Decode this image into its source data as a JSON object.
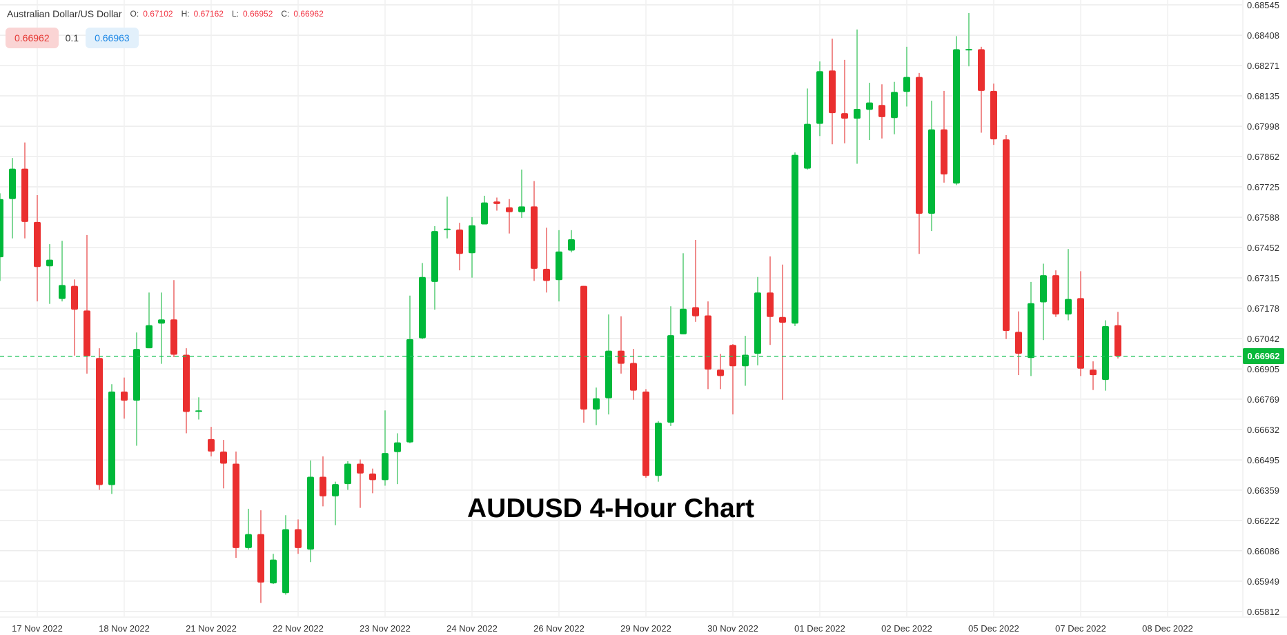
{
  "header": {
    "symbol_name": "Australian Dollar/US Dollar",
    "ohlc": [
      {
        "key": "O:",
        "value": "0.67102"
      },
      {
        "key": "H:",
        "value": "0.67162"
      },
      {
        "key": "L:",
        "value": "0.66952"
      },
      {
        "key": "C:",
        "value": "0.66962"
      }
    ],
    "bid": "0.66962",
    "spread": "0.1",
    "ask": "0.66963"
  },
  "chart_data": {
    "type": "candlestick",
    "title": "AUDUSD 4-Hour Chart",
    "ylim": [
      0.65812,
      0.68545
    ],
    "y_ticks": [
      "0.68545",
      "0.68408",
      "0.68271",
      "0.68135",
      "0.67998",
      "0.67862",
      "0.67725",
      "0.67588",
      "0.67452",
      "0.67315",
      "0.67178",
      "0.67042",
      "0.66905",
      "0.66769",
      "0.66632",
      "0.66495",
      "0.66359",
      "0.66222",
      "0.66086",
      "0.65949",
      "0.65812"
    ],
    "x_ticks": [
      "17 Nov 2022",
      "18 Nov 2022",
      "21 Nov 2022",
      "22 Nov 2022",
      "23 Nov 2022",
      "24 Nov 2022",
      "26 Nov 2022",
      "29 Nov 2022",
      "30 Nov 2022",
      "01 Dec 2022",
      "02 Dec 2022",
      "05 Dec 2022",
      "07 Dec 2022",
      "08 Dec 2022"
    ],
    "grid": true,
    "last_price": "0.66962",
    "colors": {
      "up": "#00b83a",
      "down": "#ea2f2f",
      "up_wick": "#7fd896",
      "down_wick": "#f08b8b",
      "grid": "#ececec",
      "last_price_line": "#22c55e"
    },
    "candles_ohlc": [
      [
        0.67408,
        0.67696,
        0.67301,
        0.6767
      ],
      [
        0.6767,
        0.67855,
        0.67493,
        0.67807
      ],
      [
        0.67807,
        0.67925,
        0.67493,
        0.67567
      ],
      [
        0.67567,
        0.67688,
        0.67209,
        0.67364
      ],
      [
        0.67367,
        0.67467,
        0.67198,
        0.67397
      ],
      [
        0.6722,
        0.67482,
        0.67209,
        0.67283
      ],
      [
        0.67279,
        0.67308,
        0.66965,
        0.67172
      ],
      [
        0.67168,
        0.67508,
        0.66884,
        0.66962
      ],
      [
        0.66954,
        0.66998,
        0.6636,
        0.66382
      ],
      [
        0.66382,
        0.66836,
        0.66342,
        0.66803
      ],
      [
        0.66803,
        0.66866,
        0.66681,
        0.66762
      ],
      [
        0.66762,
        0.67069,
        0.66559,
        0.66995
      ],
      [
        0.66998,
        0.67249,
        0.66998,
        0.67102
      ],
      [
        0.67109,
        0.67249,
        0.66928,
        0.67128
      ],
      [
        0.67128,
        0.67305,
        0.66958,
        0.66969
      ],
      [
        0.66969,
        0.66998,
        0.66615,
        0.66711
      ],
      [
        0.66714,
        0.66777,
        0.66677,
        0.66718
      ],
      [
        0.66589,
        0.66644,
        0.66511,
        0.66533
      ],
      [
        0.66533,
        0.66585,
        0.66367,
        0.66478
      ],
      [
        0.66478,
        0.66533,
        0.66054,
        0.66098
      ],
      [
        0.66098,
        0.66275,
        0.66091,
        0.66161
      ],
      [
        0.66161,
        0.66268,
        0.65851,
        0.65943
      ],
      [
        0.65939,
        0.66072,
        0.65936,
        0.66046
      ],
      [
        0.65895,
        0.66246,
        0.65888,
        0.66183
      ],
      [
        0.66183,
        0.66227,
        0.66072,
        0.66098
      ],
      [
        0.66091,
        0.66493,
        0.66035,
        0.66419
      ],
      [
        0.66419,
        0.66511,
        0.66286,
        0.66331
      ],
      [
        0.66331,
        0.66397,
        0.66201,
        0.66386
      ],
      [
        0.66386,
        0.66489,
        0.6636,
        0.66478
      ],
      [
        0.66478,
        0.66497,
        0.66279,
        0.66434
      ],
      [
        0.66434,
        0.66456,
        0.66345,
        0.66404
      ],
      [
        0.66404,
        0.66718,
        0.66379,
        0.66526
      ],
      [
        0.6653,
        0.66615,
        0.66386,
        0.66574
      ],
      [
        0.66574,
        0.67235,
        0.6657,
        0.67039
      ],
      [
        0.67043,
        0.67382,
        0.67039,
        0.67319
      ],
      [
        0.67297,
        0.67548,
        0.67172,
        0.67526
      ],
      [
        0.67533,
        0.67681,
        0.67493,
        0.67537
      ],
      [
        0.67533,
        0.67563,
        0.67349,
        0.67423
      ],
      [
        0.67426,
        0.67589,
        0.67316,
        0.67552
      ],
      [
        0.67556,
        0.67685,
        0.67556,
        0.67655
      ],
      [
        0.67659,
        0.67677,
        0.67618,
        0.67648
      ],
      [
        0.67633,
        0.6767,
        0.67515,
        0.67611
      ],
      [
        0.67611,
        0.67803,
        0.67585,
        0.67637
      ],
      [
        0.67637,
        0.67751,
        0.67301,
        0.67356
      ],
      [
        0.67356,
        0.67541,
        0.67249,
        0.67301
      ],
      [
        0.67305,
        0.6753,
        0.67209,
        0.67434
      ],
      [
        0.67438,
        0.6753,
        0.6743,
        0.67489
      ],
      [
        0.67279,
        0.67279,
        0.66663,
        0.66722
      ],
      [
        0.66722,
        0.66821,
        0.66652,
        0.66773
      ],
      [
        0.66773,
        0.6715,
        0.667,
        0.66987
      ],
      [
        0.66987,
        0.67142,
        0.66884,
        0.66928
      ],
      [
        0.66932,
        0.66995,
        0.66766,
        0.66807
      ],
      [
        0.66803,
        0.66814,
        0.66415,
        0.66423
      ],
      [
        0.66423,
        0.6667,
        0.66397,
        0.66663
      ],
      [
        0.66663,
        0.67187,
        0.66648,
        0.67057
      ],
      [
        0.67061,
        0.67426,
        0.67061,
        0.67176
      ],
      [
        0.67183,
        0.67486,
        0.67117,
        0.67142
      ],
      [
        0.67146,
        0.67209,
        0.66814,
        0.66902
      ],
      [
        0.66902,
        0.66973,
        0.66814,
        0.66873
      ],
      [
        0.67013,
        0.67017,
        0.667,
        0.66917
      ],
      [
        0.66917,
        0.67054,
        0.66829,
        0.66969
      ],
      [
        0.66973,
        0.67319,
        0.66921,
        0.67249
      ],
      [
        0.67249,
        0.67412,
        0.67013,
        0.67139
      ],
      [
        0.67139,
        0.67375,
        0.66766,
        0.67113
      ],
      [
        0.67109,
        0.6788,
        0.67098,
        0.67869
      ],
      [
        0.67807,
        0.68168,
        0.67803,
        0.68009
      ],
      [
        0.68009,
        0.6829,
        0.67954,
        0.68246
      ],
      [
        0.68249,
        0.68393,
        0.67917,
        0.68057
      ],
      [
        0.68057,
        0.68297,
        0.67921,
        0.68032
      ],
      [
        0.68032,
        0.68434,
        0.67829,
        0.68076
      ],
      [
        0.68072,
        0.68194,
        0.67936,
        0.68105
      ],
      [
        0.68094,
        0.68187,
        0.67943,
        0.68039
      ],
      [
        0.68035,
        0.68198,
        0.67962,
        0.68153
      ],
      [
        0.68153,
        0.68356,
        0.68087,
        0.6822
      ],
      [
        0.6822,
        0.68238,
        0.67423,
        0.67604
      ],
      [
        0.67604,
        0.68113,
        0.67526,
        0.67984
      ],
      [
        0.67984,
        0.68157,
        0.67744,
        0.67781
      ],
      [
        0.6774,
        0.68404,
        0.67733,
        0.68345
      ],
      [
        0.68345,
        0.68508,
        0.68268,
        0.68346
      ],
      [
        0.68345,
        0.68356,
        0.67969,
        0.68157
      ],
      [
        0.68157,
        0.6819,
        0.67914,
        0.67939
      ],
      [
        0.67939,
        0.67958,
        0.67039,
        0.67076
      ],
      [
        0.67072,
        0.67164,
        0.66877,
        0.66973
      ],
      [
        0.66954,
        0.67297,
        0.66873,
        0.67201
      ],
      [
        0.67205,
        0.67379,
        0.67035,
        0.67327
      ],
      [
        0.67327,
        0.67349,
        0.67139,
        0.6715
      ],
      [
        0.6715,
        0.67445,
        0.67124,
        0.6722
      ],
      [
        0.67224,
        0.67345,
        0.66873,
        0.66906
      ],
      [
        0.66902,
        0.66939,
        0.6681,
        0.66877
      ],
      [
        0.66855,
        0.67124,
        0.66807,
        0.67098
      ],
      [
        0.67102,
        0.67162,
        0.66952,
        0.66962
      ]
    ]
  }
}
